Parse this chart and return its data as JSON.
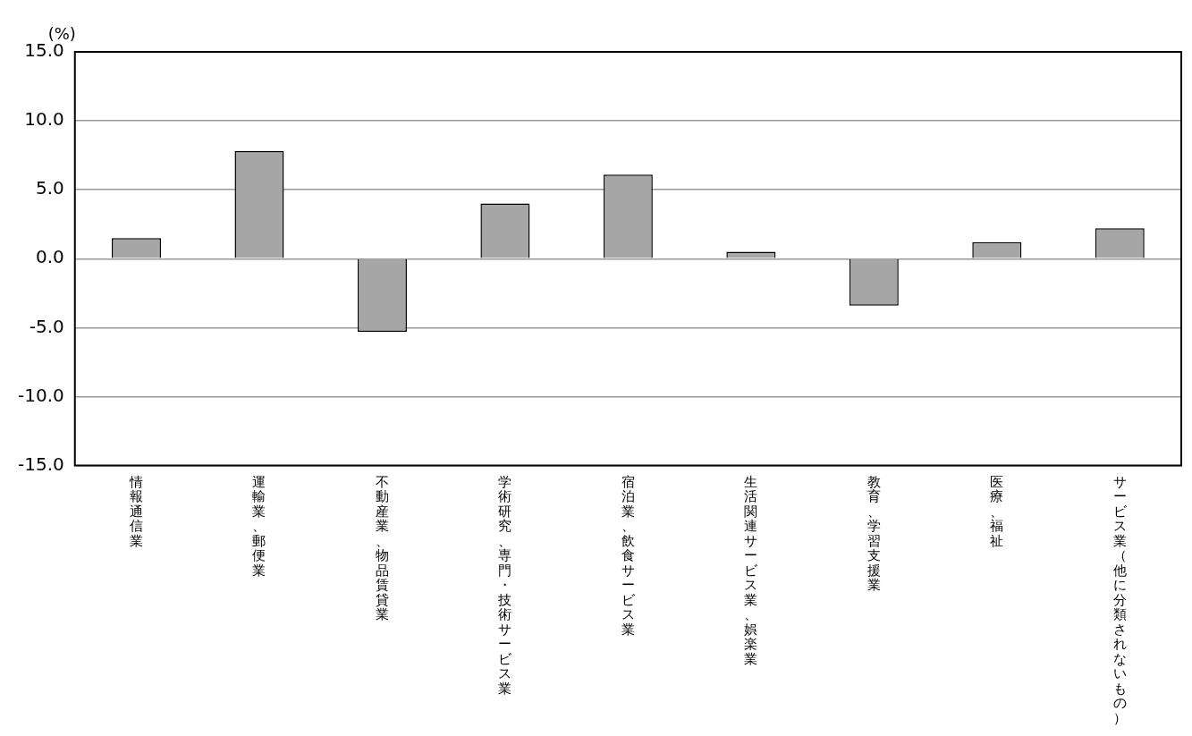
{
  "chart_data": {
    "type": "bar",
    "ylabel": "(%)",
    "categories": [
      "情報通信業",
      "運輸業、郵便業",
      "不動産業、物品賃貸業",
      "学術研究、専門・技術サービス業",
      "宿泊業、飲食サービス業",
      "生活関連サービス業、娯楽業",
      "教育、学習支援業",
      "医療、福祉",
      "サービス業（他に分類されないもの）"
    ],
    "values": [
      1.5,
      7.8,
      -5.3,
      4.0,
      6.1,
      0.5,
      -3.4,
      1.2,
      2.2
    ],
    "color": "#a6a6a6",
    "ylim": [
      -15,
      15
    ],
    "yticks": [
      {
        "value": -15,
        "label": "-15.0"
      },
      {
        "value": -10,
        "label": "-10.0"
      },
      {
        "value": -5,
        "label": "-5.0"
      },
      {
        "value": 0,
        "label": "0.0"
      },
      {
        "value": 5,
        "label": "5.0"
      },
      {
        "value": 10,
        "label": "10.0"
      },
      {
        "value": 15,
        "label": "15.0"
      }
    ],
    "grid": "y",
    "legend": false
  }
}
